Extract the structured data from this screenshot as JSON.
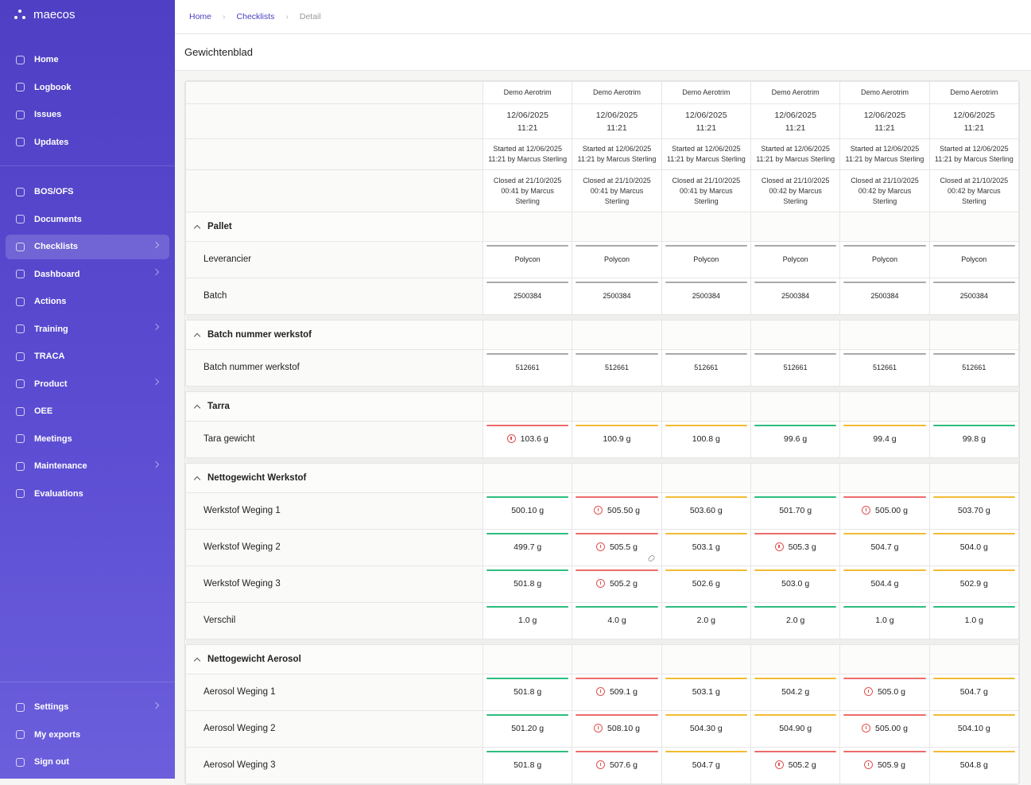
{
  "sidebar": {
    "brand": "maecos",
    "groups": [
      [
        {
          "label": "Home"
        },
        {
          "label": "Logbook"
        },
        {
          "label": "Issues"
        },
        {
          "label": "Updates"
        }
      ],
      [
        {
          "label": "BOS/OFS"
        },
        {
          "label": "Documents"
        },
        {
          "label": "Checklists",
          "active": true,
          "has_children": true
        },
        {
          "label": "Dashboard",
          "has_children": true
        },
        {
          "label": "Actions"
        },
        {
          "label": "Training",
          "has_children": true
        },
        {
          "label": "TRACA"
        },
        {
          "label": "Product",
          "has_children": true
        },
        {
          "label": "OEE"
        },
        {
          "label": "Meetings"
        },
        {
          "label": "Maintenance",
          "has_children": true
        },
        {
          "label": "Evaluations"
        }
      ],
      [
        {
          "label": "Settings",
          "has_children": true
        },
        {
          "label": "My exports"
        },
        {
          "label": "Sign out"
        }
      ]
    ]
  },
  "breadcrumb": [
    "Home",
    "Checklists",
    "Detail"
  ],
  "title": "Gewichtenblad",
  "columns": [
    {
      "name": "Demo Aerotrim",
      "date": "12/06/2025",
      "time": "11:21",
      "started": "Started at 12/06/2025 11:21 by Marcus Sterling",
      "closed": "Closed at 21/10/2025 00:41 by Marcus Sterling"
    },
    {
      "name": "Demo Aerotrim",
      "date": "12/06/2025",
      "time": "11:21",
      "started": "Started at 12/06/2025 11:21 by Marcus Sterling",
      "closed": "Closed at 21/10/2025 00:41 by Marcus Sterling"
    },
    {
      "name": "Demo Aerotrim",
      "date": "12/06/2025",
      "time": "11:21",
      "started": "Started at 12/06/2025 11:21 by Marcus Sterling",
      "closed": "Closed at 21/10/2025 00:41 by Marcus Sterling"
    },
    {
      "name": "Demo Aerotrim",
      "date": "12/06/2025",
      "time": "11:21",
      "started": "Started at 12/06/2025 11:21 by Marcus Sterling",
      "closed": "Closed at 21/10/2025 00:42 by Marcus Sterling"
    },
    {
      "name": "Demo Aerotrim",
      "date": "12/06/2025",
      "time": "11:21",
      "started": "Started at 12/06/2025 11:21 by Marcus Sterling",
      "closed": "Closed at 21/10/2025 00:42 by Marcus Sterling"
    },
    {
      "name": "Demo Aerotrim",
      "date": "12/06/2025",
      "time": "11:21",
      "started": "Started at 12/06/2025 11:21 by Marcus Sterling",
      "closed": "Closed at 21/10/2025 00:42 by Marcus Sterling"
    }
  ],
  "sections": [
    {
      "title": "Pallet",
      "rows": [
        {
          "label": "Leverancier",
          "cells": [
            "Polycon",
            "Polycon",
            "Polycon",
            "Polycon",
            "Polycon",
            "Polycon"
          ],
          "status": [
            "gray",
            "gray",
            "gray",
            "gray",
            "gray",
            "gray"
          ]
        },
        {
          "label": "Batch",
          "cells": [
            "2500384",
            "2500384",
            "2500384",
            "2500384",
            "2500384",
            "2500384"
          ],
          "status": [
            "gray",
            "gray",
            "gray",
            "gray",
            "gray",
            "gray"
          ]
        }
      ]
    },
    {
      "title": "Batch nummer werkstof",
      "rows": [
        {
          "label": "Batch nummer werkstof",
          "cells": [
            "512661",
            "512661",
            "512661",
            "512661",
            "512661",
            "512661"
          ],
          "status": [
            "gray",
            "gray",
            "gray",
            "gray",
            "gray",
            "gray"
          ]
        }
      ]
    },
    {
      "title": "Tarra",
      "rows": [
        {
          "label": "Tara gewicht",
          "cells": [
            "103.6 g",
            "100.9 g",
            "100.8 g",
            "99.6 g",
            "99.4 g",
            "99.8 g"
          ],
          "status": [
            "red",
            "yellow",
            "yellow",
            "green",
            "yellow",
            "green"
          ]
        }
      ]
    },
    {
      "title": "Nettogewicht Werkstof",
      "rows": [
        {
          "label": "Werkstof Weging 1",
          "cells": [
            "500.10 g",
            "505.50 g",
            "503.60 g",
            "501.70 g",
            "505.00 g",
            "503.70 g"
          ],
          "status": [
            "green",
            "red",
            "yellow",
            "green",
            "red",
            "yellow"
          ]
        },
        {
          "label": "Werkstof Weging 2",
          "cells": [
            "499.7 g",
            "505.5 g",
            "503.1 g",
            "505.3 g",
            "504.7 g",
            "504.0 g"
          ],
          "status": [
            "green",
            "red",
            "yellow",
            "red",
            "yellow",
            "yellow"
          ],
          "linked": [
            1
          ]
        },
        {
          "label": "Werkstof Weging 3",
          "cells": [
            "501.8 g",
            "505.2 g",
            "502.6 g",
            "503.0 g",
            "504.4 g",
            "502.9 g"
          ],
          "status": [
            "green",
            "red",
            "yellow",
            "yellow",
            "yellow",
            "yellow"
          ]
        },
        {
          "label": "Verschil",
          "cells": [
            "1.0 g",
            "4.0 g",
            "2.0 g",
            "2.0 g",
            "1.0 g",
            "1.0 g"
          ],
          "status": [
            "green",
            "green",
            "green",
            "green",
            "green",
            "green"
          ]
        }
      ]
    },
    {
      "title": "Nettogewicht Aerosol",
      "rows": [
        {
          "label": "Aerosol Weging 1",
          "cells": [
            "501.8 g",
            "509.1 g",
            "503.1 g",
            "504.2 g",
            "505.0 g",
            "504.7 g"
          ],
          "status": [
            "green",
            "red",
            "yellow",
            "yellow",
            "red",
            "yellow"
          ]
        },
        {
          "label": "Aerosol Weging 2",
          "cells": [
            "501.20 g",
            "508.10 g",
            "504.30 g",
            "504.90 g",
            "505.00 g",
            "504.10 g"
          ],
          "status": [
            "green",
            "red",
            "yellow",
            "yellow",
            "red",
            "yellow"
          ]
        },
        {
          "label": "Aerosol Weging 3",
          "cells": [
            "501.8 g",
            "507.6 g",
            "504.7 g",
            "505.2 g",
            "505.9 g",
            "504.8 g"
          ],
          "status": [
            "green",
            "red",
            "yellow",
            "red",
            "red",
            "yellow"
          ]
        }
      ]
    }
  ]
}
